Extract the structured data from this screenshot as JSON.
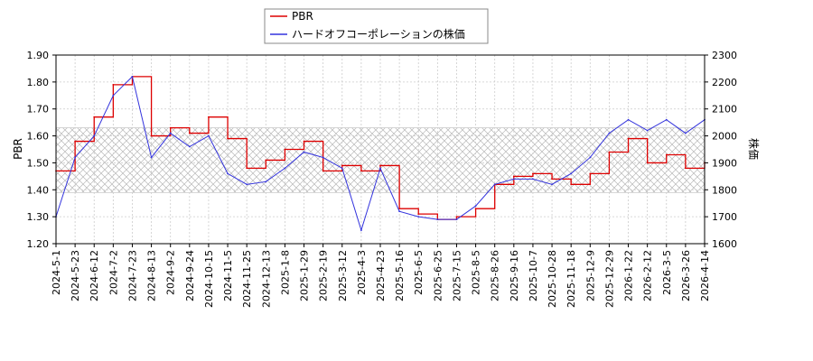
{
  "chart_data": {
    "type": "line",
    "x": [
      "2024-5-1",
      "2024-5-23",
      "2024-6-12",
      "2024-7-2",
      "2024-7-23",
      "2024-8-13",
      "2024-9-2",
      "2024-9-24",
      "2024-10-15",
      "2024-11-5",
      "2024-11-25",
      "2024-12-13",
      "2025-1-8",
      "2025-1-29",
      "2025-2-19",
      "2025-3-12",
      "2025-4-3",
      "2025-4-23",
      "2025-5-16",
      "2025-6-5",
      "2025-6-25",
      "2025-7-15",
      "2025-8-5",
      "2025-8-26",
      "2025-9-16",
      "2025-10-7",
      "2025-10-28",
      "2025-11-18",
      "2025-12-9",
      "2025-12-29",
      "2026-1-22",
      "2026-2-12",
      "2026-3-5",
      "2026-3-26",
      "2026-4-14"
    ],
    "xticks": [
      "2024-5-1",
      "2024-5-23",
      "2024-6-12",
      "2024-7-2",
      "2024-7-23",
      "2024-8-13",
      "2024-9-2",
      "2024-9-24",
      "2024-10-15",
      "2024-11-5",
      "2024-11-25",
      "2024-12-13",
      "2025-1-8",
      "2025-1-29",
      "2025-2-19",
      "2025-3-12",
      "2025-4-3",
      "2025-4-23",
      "2025-5-16",
      "2025-6-5",
      "2025-6-25",
      "2025-7-15",
      "2025-8-5",
      "2025-8-26",
      "2025-9-16",
      "2025-10-7",
      "2025-10-28",
      "2025-11-18",
      "2025-12-9",
      "2025-12-29",
      "2026-1-22",
      "2026-2-12",
      "2026-3-5",
      "2026-3-26",
      "2026-4-14"
    ],
    "ylabel_left": "PBR",
    "ylabel_right": "株価",
    "ylim_left": [
      1.2,
      1.9
    ],
    "ylim_right": [
      1600,
      2300
    ],
    "yticks_left": [
      "1.20",
      "1.30",
      "1.40",
      "1.50",
      "1.60",
      "1.70",
      "1.80",
      "1.90"
    ],
    "yticks_right": [
      "1600",
      "1700",
      "1800",
      "1900",
      "2000",
      "2100",
      "2200",
      "2300"
    ],
    "band_left": [
      1.39,
      1.63
    ],
    "grid": true,
    "legend_position": "top-center",
    "series": [
      {
        "name": "PBR",
        "axis": "left",
        "color": "#dd0000",
        "values": [
          1.47,
          1.58,
          1.67,
          1.79,
          1.82,
          1.6,
          1.63,
          1.61,
          1.67,
          1.59,
          1.48,
          1.51,
          1.55,
          1.58,
          1.47,
          1.49,
          1.47,
          1.49,
          1.33,
          1.31,
          1.29,
          1.3,
          1.33,
          1.42,
          1.45,
          1.46,
          1.44,
          1.42,
          1.46,
          1.54,
          1.59,
          1.5,
          1.53,
          1.48,
          1.5
        ]
      },
      {
        "name": "ハードオフコーポレーションの株価",
        "axis": "right",
        "color": "#3333dd",
        "values": [
          1700,
          1920,
          2000,
          2150,
          2220,
          1920,
          2010,
          1960,
          2000,
          1860,
          1820,
          1830,
          1880,
          1940,
          1920,
          1880,
          1650,
          1880,
          1720,
          1700,
          1690,
          1690,
          1740,
          1820,
          1840,
          1840,
          1820,
          1860,
          1920,
          2010,
          2060,
          2020,
          2060,
          2010,
          2060
        ]
      }
    ]
  }
}
